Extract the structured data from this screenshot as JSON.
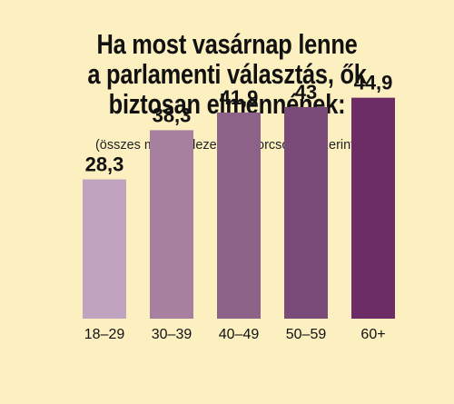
{
  "title_lines": [
    "Ha most vasárnap lenne",
    "a parlamenti választás, ők",
    "biztosan elmennének:"
  ],
  "subtitle": "(összes megkérdezett, %, korcsoport szerint)",
  "chart_data": {
    "type": "bar",
    "title": "Ha most vasárnap lenne a parlamenti választás, ők biztosan elmennének:",
    "subtitle": "(összes megkérdezett, %, korcsoport szerint)",
    "categories": [
      "18–29",
      "30–39",
      "40–49",
      "50–59",
      "60+"
    ],
    "values": [
      28.3,
      38.3,
      41.9,
      43,
      44.9
    ],
    "value_labels": [
      "28,3",
      "38,3",
      "41,9",
      "43",
      "44,9"
    ],
    "colors": [
      "#c0a3be",
      "#a8809f",
      "#8d6288",
      "#7a4a78",
      "#6c2d67"
    ],
    "grid": false,
    "legend": "none"
  }
}
